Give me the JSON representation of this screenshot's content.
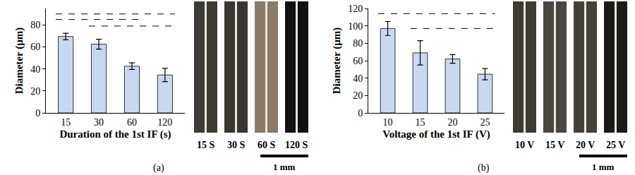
{
  "chart_data": [
    {
      "type": "bar",
      "panel_label": "(a)",
      "x_label": "Duration of the 1st IF (s)",
      "y_label": "Diameter (µm)",
      "categories": [
        "15",
        "30",
        "60",
        "120"
      ],
      "values": [
        69.5,
        62.5,
        42.5,
        34.5
      ],
      "errors": [
        3,
        4.5,
        3,
        6
      ],
      "ylim": [
        0,
        95
      ],
      "yticks": [
        0,
        20,
        40,
        60,
        80
      ],
      "color": "#c9d8f0",
      "grid": false,
      "significance": [
        {
          "from": "15",
          "to": "120",
          "y": 90
        },
        {
          "from": "15",
          "to": "60",
          "y": 85
        },
        {
          "from": "30",
          "to": "120",
          "y": 79
        }
      ],
      "image_labels": [
        "15 S",
        "30 S",
        "60 S",
        "120 S"
      ],
      "scale_bar_label": "1 mm"
    },
    {
      "type": "bar",
      "panel_label": "(b)",
      "x_label": "Voltage of the 1st IF (V)",
      "y_label": "Diameter (µm)",
      "categories": [
        "10",
        "15",
        "20",
        "25"
      ],
      "values": [
        97,
        69,
        62,
        44.5
      ],
      "errors": [
        8,
        14,
        5,
        6.5
      ],
      "ylim": [
        0,
        120
      ],
      "yticks": [
        0,
        20,
        40,
        60,
        80,
        100,
        120
      ],
      "color": "#c9d8f0",
      "grid": false,
      "significance": [
        {
          "from": "10",
          "to": "25",
          "y": 114
        },
        {
          "from": "15",
          "to": "25",
          "y": 97
        }
      ],
      "image_labels": [
        "10 V",
        "15 V",
        "20 V",
        "25 V"
      ],
      "scale_bar_label": "1 mm"
    }
  ]
}
